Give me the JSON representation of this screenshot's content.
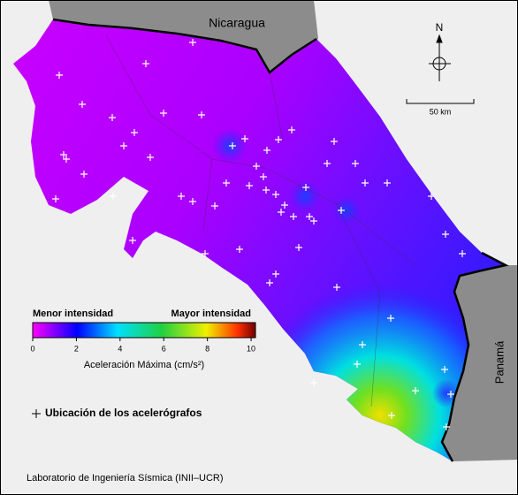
{
  "labels": {
    "nicaragua": "Nicaragua",
    "panama": "Panamá",
    "north": "N",
    "scale": "50 km"
  },
  "colorbar": {
    "low_label": "Menor intensidad",
    "high_label": "Mayor intensidad",
    "lim": [
      0,
      10.2
    ],
    "ticks": [
      0,
      2,
      4,
      6,
      8,
      10
    ],
    "title": "Aceleración Máxima (cm/s²)"
  },
  "legend": "Ubicación de los acelerógrafos",
  "footer": "Laboratorio de Ingeniería Sísmica (INII–UCR)"
}
